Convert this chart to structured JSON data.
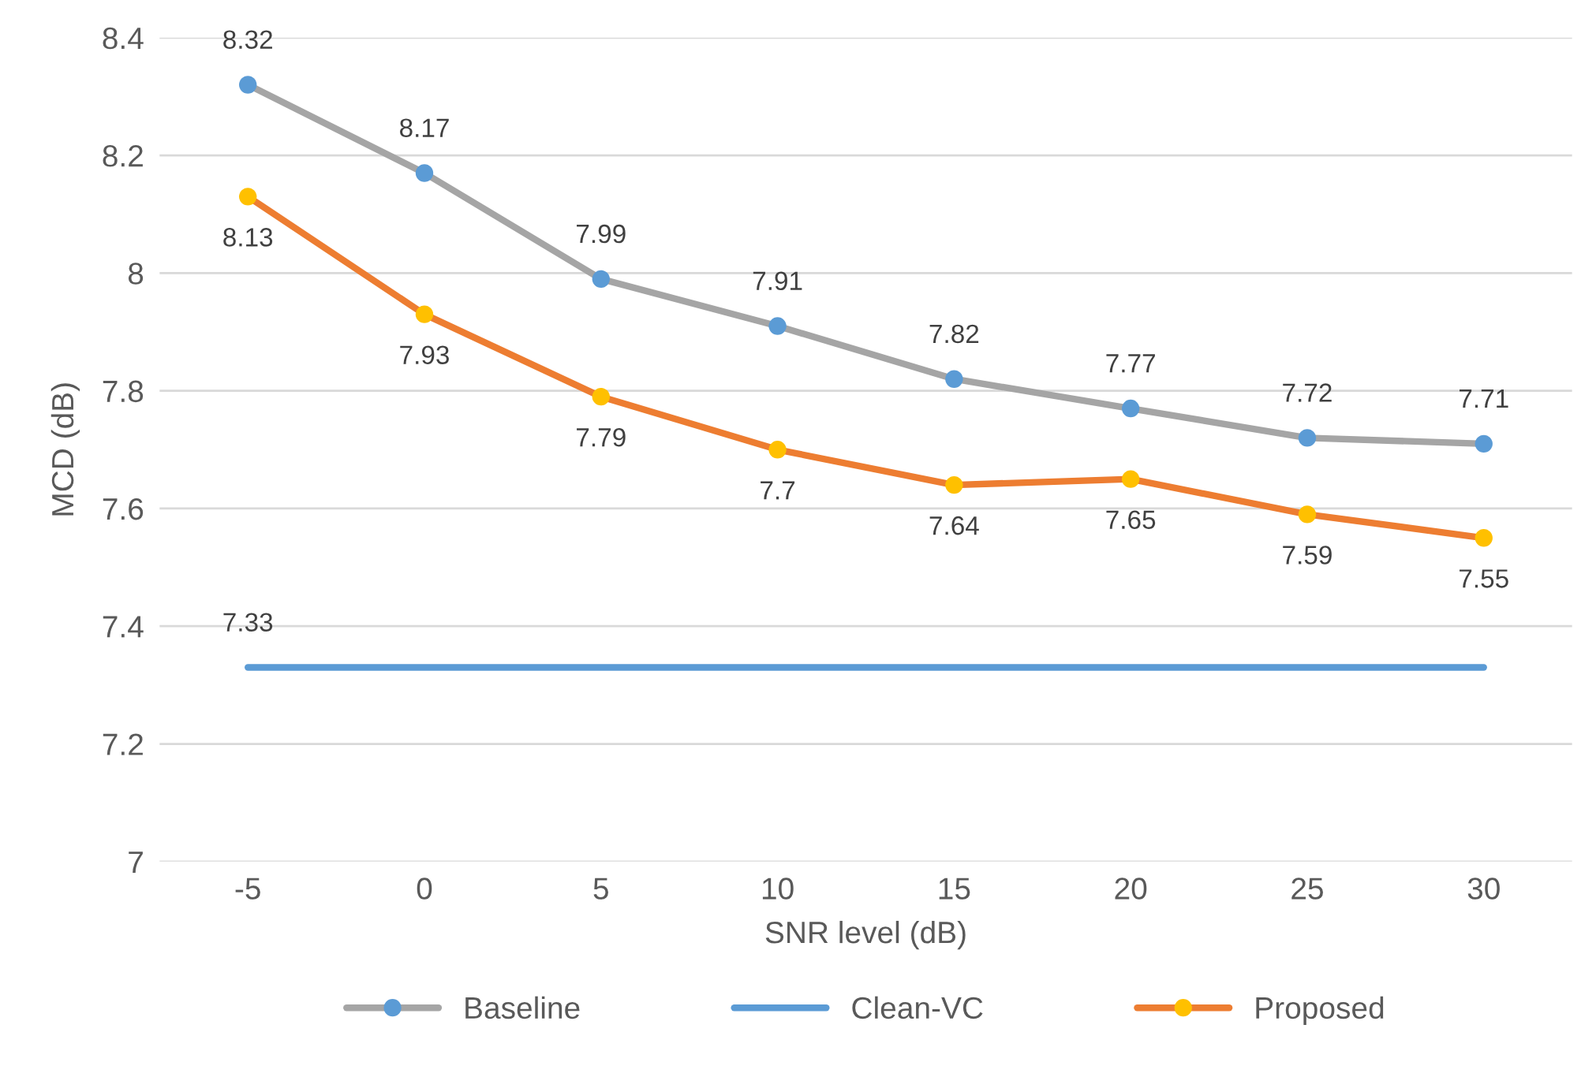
{
  "chart_data": {
    "type": "line",
    "xlabel": "SNR level (dB)",
    "ylabel": "MCD (dB)",
    "categories": [
      "-5",
      "0",
      "5",
      "10",
      "15",
      "20",
      "25",
      "30"
    ],
    "series": [
      {
        "name": "Baseline",
        "color": "#a5a5a5",
        "colors": [
          "#5b9bd5",
          "#5b9bd5",
          "#5b9bd5",
          "#5b9bd5",
          "#5b9bd5",
          "#5b9bd5",
          "#5b9bd5",
          "#5b9bd5"
        ],
        "marker": "circle",
        "values": [
          8.32,
          8.17,
          7.99,
          7.91,
          7.82,
          7.77,
          7.72,
          7.71
        ],
        "value_labels": [
          "8.32",
          "8.17",
          "7.99",
          "7.91",
          "7.82",
          "7.77",
          "7.72",
          "7.71"
        ]
      },
      {
        "name": "Clean-VC",
        "color": "#5b9bd5",
        "marker": "none",
        "values": [
          7.33,
          7.33,
          7.33,
          7.33,
          7.33,
          7.33,
          7.33,
          7.33
        ],
        "value_labels": [
          "7.33",
          null,
          null,
          null,
          null,
          null,
          null,
          null
        ]
      },
      {
        "name": "Proposed",
        "color": "#ed7d31",
        "colors": [
          "#ffc000",
          "#ffc000",
          "#ffc000",
          "#ffc000",
          "#ffc000",
          "#ffc000",
          "#ffc000",
          "#ffc000"
        ],
        "marker": "circle",
        "values": [
          8.13,
          7.93,
          7.79,
          7.7,
          7.64,
          7.65,
          7.59,
          7.55
        ],
        "value_labels": [
          "8.13",
          "7.93",
          "7.79",
          "7.7",
          "7.64",
          "7.65",
          "7.59",
          "7.55"
        ]
      }
    ],
    "ylim": [
      7,
      8.4
    ],
    "yticks": [
      7,
      7.2,
      7.4,
      7.6,
      7.8,
      8,
      8.2,
      8.4
    ],
    "grid": "y",
    "legend": "bottom"
  }
}
